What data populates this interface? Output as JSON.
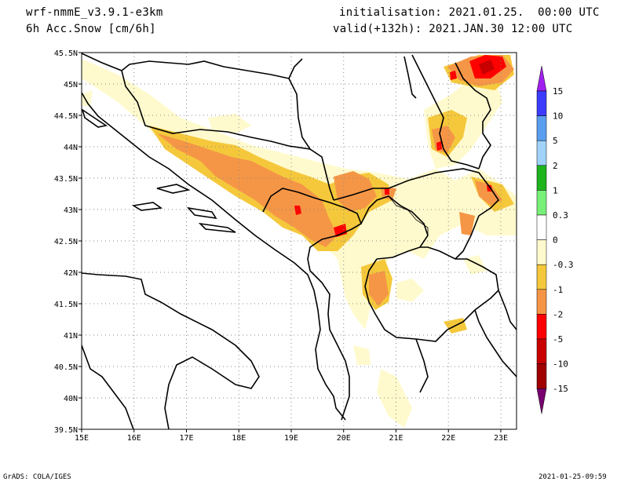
{
  "header": {
    "model": "wrf-nmmE_v3.9.1-e3km",
    "field": "6h Acc.Snow [cm/6h]",
    "initialisation": "initialisation: 2021.01.25.  00:00 UTC",
    "valid": "valid(+132h): 2021.JAN.30 12:00 UTC"
  },
  "footer": {
    "credit": "GrADS: COLA/IGES",
    "timestamp": "2021-01-25-09:59"
  },
  "map": {
    "lon_ticks": [
      "15E",
      "16E",
      "17E",
      "18E",
      "19E",
      "20E",
      "21E",
      "22E",
      "23E"
    ],
    "lat_ticks": [
      "45.5N",
      "45N",
      "44.5N",
      "44N",
      "43.5N",
      "43N",
      "42.5N",
      "42N",
      "41.5N",
      "41N",
      "40.5N",
      "40N",
      "39.5N"
    ],
    "lon_range": [
      15,
      23.3
    ],
    "lat_range": [
      39.5,
      45.5
    ],
    "grid": "dotted"
  },
  "colorbar": {
    "labels": [
      "15",
      "10",
      "5",
      "2",
      "1",
      "0.3",
      "0",
      "-0.3",
      "-1",
      "-2",
      "-5",
      "-10",
      "-15"
    ],
    "colors": [
      "#a020f0",
      "#3c3cff",
      "#5a9ef0",
      "#a0d2fa",
      "#1eb41e",
      "#78f078",
      "#ffffff",
      "#fffacd",
      "#f5c83c",
      "#f59646",
      "#ff0000",
      "#c80000",
      "#a00000",
      "#78006e"
    ]
  }
}
